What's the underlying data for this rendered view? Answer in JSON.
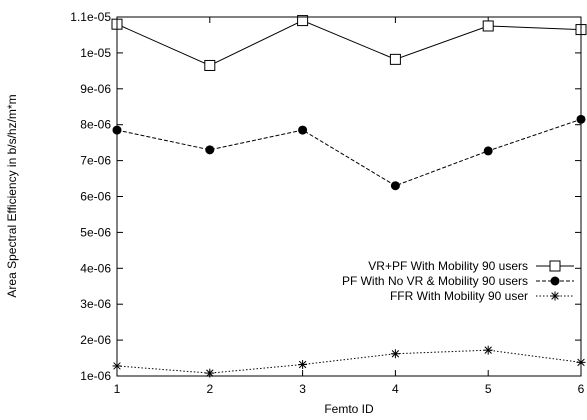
{
  "chart_data": {
    "type": "line",
    "xlabel": "Femto ID",
    "ylabel": "Area Spectral Efficiency in b/s/hz/m*m",
    "x": [
      1,
      2,
      3,
      4,
      5,
      6
    ],
    "xlim": [
      1,
      6
    ],
    "ylim": [
      1e-06,
      1.1e-05
    ],
    "x_ticks": [
      "1",
      "2",
      "3",
      "4",
      "5",
      "6"
    ],
    "y_ticks": [
      {
        "value": 1e-06,
        "label": "1e-06"
      },
      {
        "value": 2e-06,
        "label": "2e-06"
      },
      {
        "value": 3e-06,
        "label": "3e-06"
      },
      {
        "value": 4e-06,
        "label": "4e-06"
      },
      {
        "value": 5e-06,
        "label": "5e-06"
      },
      {
        "value": 6e-06,
        "label": "6e-06"
      },
      {
        "value": 7e-06,
        "label": "7e-06"
      },
      {
        "value": 8e-06,
        "label": "8e-06"
      },
      {
        "value": 9e-06,
        "label": "9e-06"
      },
      {
        "value": 1e-05,
        "label": "1e-05"
      },
      {
        "value": 1.1e-05,
        "label": "1.1e-05"
      }
    ],
    "grid": false,
    "legend_position": "right",
    "series": [
      {
        "name": "VR+PF With Mobility 90 users",
        "marker": "open-square",
        "line": "solid",
        "values": [
          1.08e-05,
          9.65e-06,
          1.09e-05,
          9.82e-06,
          1.075e-05,
          1.065e-05
        ]
      },
      {
        "name": "PF With No VR & Mobility 90 users",
        "marker": "filled-circle",
        "line": "dashed",
        "values": [
          7.85e-06,
          7.3e-06,
          7.85e-06,
          6.3e-06,
          7.27e-06,
          8.15e-06
        ]
      },
      {
        "name": "FFR With Mobility 90 user",
        "marker": "asterisk",
        "line": "dotted",
        "values": [
          1.28e-06,
          1.08e-06,
          1.32e-06,
          1.62e-06,
          1.72e-06,
          1.38e-06
        ]
      }
    ]
  }
}
